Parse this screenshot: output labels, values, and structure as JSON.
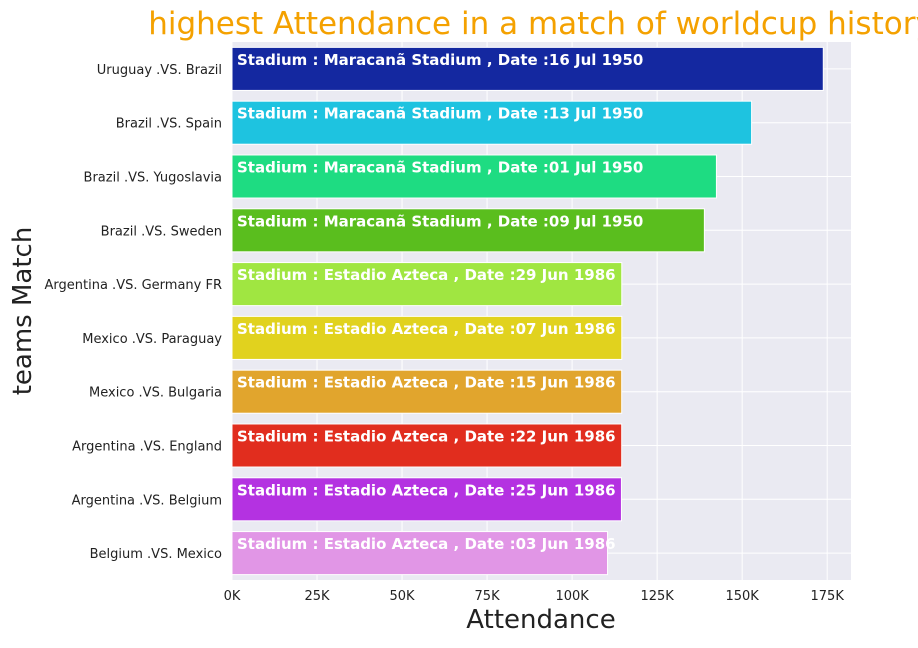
{
  "chart_data": {
    "type": "bar",
    "orientation": "horizontal",
    "title": "highest Attendance in a match of worldcup history",
    "xlabel": "Attendance",
    "ylabel": "teams Match",
    "xlim": [
      0,
      182000
    ],
    "xticks": [
      0,
      25000,
      50000,
      75000,
      100000,
      125000,
      150000,
      175000
    ],
    "xtick_labels": [
      "0K",
      "25K",
      "50K",
      "75K",
      "100K",
      "125K",
      "150K",
      "175K"
    ],
    "grid": true,
    "categories": [
      "Uruguay  .VS.  Brazil",
      "Brazil  .VS.  Spain",
      "Brazil  .VS.  Yugoslavia",
      "Brazil  .VS.  Sweden",
      "Argentina  .VS.  Germany FR",
      "Mexico  .VS.  Paraguay",
      "Mexico  .VS.  Bulgaria",
      "Argentina  .VS.  England",
      "Argentina  .VS.  Belgium",
      "Belgium  .VS.  Mexico"
    ],
    "values": [
      173850,
      152772,
      142429,
      138886,
      114600,
      114600,
      114580,
      114580,
      114500,
      110420
    ],
    "annotations": [
      "Stadium : Maracanã Stadium , Date :16 Jul 1950",
      "Stadium : Maracanã Stadium , Date :13 Jul 1950",
      "Stadium : Maracanã Stadium , Date :01 Jul 1950",
      "Stadium : Maracanã Stadium , Date :09 Jul 1950",
      "Stadium : Estadio Azteca , Date :29 Jun 1986",
      "Stadium : Estadio Azteca , Date :07 Jun 1986",
      "Stadium : Estadio Azteca , Date :15 Jun 1986",
      "Stadium : Estadio Azteca , Date :22 Jun 1986",
      "Stadium : Estadio Azteca , Date :25 Jun 1986",
      "Stadium : Estadio Azteca , Date :03 Jun 1986"
    ],
    "colors": [
      "#1428a0",
      "#1ec3e0",
      "#1edc82",
      "#5abe1e",
      "#a0e641",
      "#e1d21e",
      "#e1a52d",
      "#e12d1e",
      "#b432e1",
      "#e196e6"
    ]
  },
  "style": {
    "title_color": "#f4a100",
    "plot_background": "#eaeaf2",
    "grid_color": "#ffffff",
    "text_color": "#222222",
    "annotation_color": "#ffffff"
  }
}
